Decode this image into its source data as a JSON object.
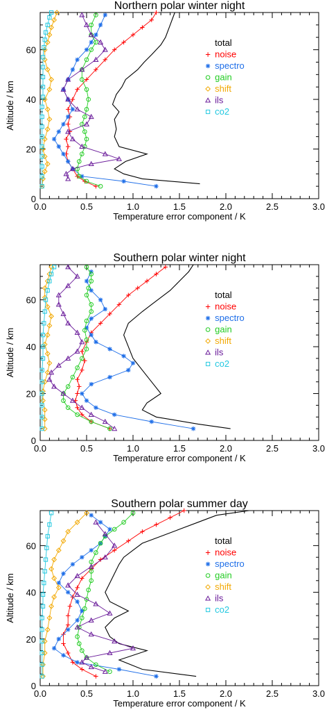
{
  "chart_data": [
    {
      "type": "line",
      "title": "Northern polar winter night",
      "xlabel": "Temperature error component / K",
      "ylabel": "Altitude / km",
      "xlim": [
        0,
        3
      ],
      "ylim": [
        0,
        75
      ],
      "xticks": [
        "0.0",
        "0.5",
        "1.0",
        "1.5",
        "2.0",
        "2.5",
        "3.0"
      ],
      "yticks": [
        "0",
        "20",
        "40",
        "60"
      ],
      "grid": false,
      "legend": "top-right",
      "series": [
        {
          "name": "total",
          "color": "#000000",
          "marker": "none",
          "x": [
            1.72,
            1.1,
            0.9,
            0.8,
            0.92,
            1.15,
            0.85,
            0.8,
            0.82,
            0.8,
            0.85,
            0.78,
            0.82,
            0.88,
            0.92,
            1.05,
            1.12,
            1.2,
            1.3,
            1.35,
            1.4,
            1.45
          ],
          "y": [
            6,
            8,
            10,
            12,
            15,
            18,
            21,
            25,
            28,
            32,
            35,
            38,
            42,
            45,
            48,
            52,
            55,
            58,
            62,
            65,
            70,
            75
          ]
        },
        {
          "name": "noise",
          "color": "#ff0000",
          "marker": "plus",
          "x": [
            0.6,
            0.48,
            0.4,
            0.35,
            0.3,
            0.28,
            0.3,
            0.28,
            0.32,
            0.3,
            0.32,
            0.3,
            0.35,
            0.4,
            0.5,
            0.6,
            0.7,
            0.8,
            0.9,
            1.0,
            1.1,
            1.2,
            1.25
          ],
          "y": [
            5,
            7,
            9,
            12,
            15,
            18,
            21,
            24,
            27,
            30,
            33,
            36,
            40,
            44,
            48,
            52,
            56,
            60,
            63,
            66,
            69,
            72,
            75
          ]
        },
        {
          "name": "spectro",
          "color": "#1e6ee8",
          "marker": "asterisk",
          "x": [
            1.25,
            0.9,
            0.45,
            0.35,
            0.3,
            0.25,
            0.2,
            0.15,
            0.2,
            0.25,
            0.3,
            0.35,
            0.3,
            0.25,
            0.3,
            0.35,
            0.4,
            0.5,
            0.55,
            0.6,
            0.65,
            0.7
          ],
          "y": [
            5,
            7,
            9,
            12,
            15,
            18,
            21,
            24,
            27,
            30,
            33,
            36,
            40,
            44,
            48,
            52,
            56,
            60,
            63,
            66,
            70,
            74
          ]
        },
        {
          "name": "gain",
          "color": "#22cc22",
          "marker": "circle",
          "x": [
            0.65,
            0.5,
            0.42,
            0.4,
            0.42,
            0.45,
            0.48,
            0.5,
            0.48,
            0.45,
            0.48,
            0.5,
            0.52,
            0.5,
            0.45,
            0.45,
            0.5,
            0.55,
            0.6,
            0.55,
            0.55,
            0.6
          ],
          "y": [
            5,
            7,
            9,
            12,
            15,
            18,
            21,
            24,
            27,
            30,
            33,
            36,
            40,
            44,
            48,
            52,
            56,
            60,
            63,
            66,
            70,
            74
          ]
        },
        {
          "name": "shift",
          "color": "#f2a800",
          "marker": "diamond",
          "x": [
            0.02,
            0.03,
            0.05,
            0.08,
            0.05,
            0.03,
            0.05,
            0.08,
            0.1,
            0.08,
            0.05,
            0.1,
            0.12,
            0.08,
            0.05,
            0.05,
            0.08,
            0.1,
            0.12,
            0.15,
            0.18
          ],
          "y": [
            5,
            8,
            11,
            14,
            17,
            20,
            24,
            28,
            32,
            36,
            40,
            44,
            48,
            52,
            56,
            60,
            63,
            66,
            69,
            72,
            75
          ]
        },
        {
          "name": "ils",
          "color": "#6a1b9a",
          "marker": "triangle",
          "x": [
            0.3,
            0.28,
            0.35,
            0.55,
            0.85,
            0.7,
            0.45,
            0.35,
            0.3,
            0.5,
            0.55,
            0.4,
            0.3,
            0.25,
            0.3,
            0.45,
            0.6,
            0.7,
            0.65,
            0.55,
            0.5,
            0.45
          ],
          "y": [
            8,
            10,
            12,
            14,
            16,
            18,
            21,
            24,
            27,
            30,
            33,
            36,
            40,
            44,
            48,
            52,
            56,
            60,
            63,
            66,
            70,
            74
          ]
        },
        {
          "name": "co2",
          "color": "#22c8e0",
          "marker": "square",
          "x": [
            0.02,
            0.02,
            0.02,
            0.02,
            0.02,
            0.02,
            0.02,
            0.02,
            0.02,
            0.03,
            0.03,
            0.03,
            0.03,
            0.03,
            0.04,
            0.05,
            0.06,
            0.08,
            0.1,
            0.12
          ],
          "y": [
            5,
            9,
            13,
            17,
            21,
            25,
            29,
            33,
            37,
            41,
            45,
            49,
            53,
            57,
            61,
            64,
            67,
            70,
            73,
            75
          ]
        }
      ]
    },
    {
      "type": "line",
      "title": "Southern polar winter night",
      "xlabel": "Temperature error component / K",
      "ylabel": "Altitude / km",
      "xlim": [
        0,
        3
      ],
      "ylim": [
        0,
        75
      ],
      "xticks": [
        "0.0",
        "0.5",
        "1.0",
        "1.5",
        "2.0",
        "2.5",
        "3.0"
      ],
      "yticks": [
        "0",
        "20",
        "40",
        "60"
      ],
      "grid": false,
      "legend": "top-right",
      "series": [
        {
          "name": "total",
          "color": "#000000",
          "marker": "none",
          "x": [
            2.05,
            1.7,
            1.25,
            1.1,
            1.15,
            1.3,
            1.2,
            1.1,
            1.0,
            0.95,
            0.9,
            0.95,
            1.1,
            1.2,
            1.3,
            1.4,
            1.45,
            1.5,
            1.55,
            1.6,
            1.65
          ],
          "y": [
            5,
            7,
            10,
            13,
            16,
            20,
            25,
            30,
            35,
            40,
            45,
            50,
            55,
            58,
            61,
            64,
            66,
            68,
            70,
            72,
            75
          ]
        },
        {
          "name": "noise",
          "color": "#ff0000",
          "marker": "plus",
          "x": [
            0.75,
            0.55,
            0.45,
            0.4,
            0.38,
            0.4,
            0.42,
            0.4,
            0.45,
            0.48,
            0.45,
            0.5,
            0.55,
            0.65,
            0.75,
            0.85,
            0.95,
            1.05,
            1.15,
            1.25,
            1.35
          ],
          "y": [
            5,
            8,
            11,
            14,
            17,
            20,
            23,
            26,
            30,
            34,
            38,
            42,
            46,
            50,
            54,
            58,
            62,
            65,
            68,
            71,
            74
          ]
        },
        {
          "name": "spectro",
          "color": "#1e6ee8",
          "marker": "asterisk",
          "x": [
            1.65,
            1.2,
            0.8,
            0.6,
            0.5,
            0.45,
            0.55,
            0.75,
            0.95,
            1.0,
            0.9,
            0.75,
            0.6,
            0.55,
            0.5,
            0.55,
            0.7,
            0.65,
            0.55,
            0.5,
            0.55
          ],
          "y": [
            5,
            8,
            11,
            14,
            17,
            20,
            24,
            27,
            30,
            33,
            36,
            39,
            42,
            45,
            48,
            52,
            56,
            60,
            64,
            68,
            72
          ]
        },
        {
          "name": "gain",
          "color": "#22cc22",
          "marker": "circle",
          "x": [
            0.75,
            0.55,
            0.4,
            0.3,
            0.25,
            0.25,
            0.3,
            0.35,
            0.4,
            0.45,
            0.5,
            0.5,
            0.48,
            0.5,
            0.55,
            0.55,
            0.5,
            0.52,
            0.55,
            0.55,
            0.5
          ],
          "y": [
            5,
            8,
            11,
            14,
            17,
            20,
            23,
            27,
            31,
            35,
            39,
            43,
            47,
            51,
            55,
            58,
            62,
            65,
            68,
            71,
            74
          ]
        },
        {
          "name": "shift",
          "color": "#f2a800",
          "marker": "diamond",
          "x": [
            0.05,
            0.05,
            0.05,
            0.03,
            0.03,
            0.05,
            0.08,
            0.1,
            0.08,
            0.05,
            0.08,
            0.1,
            0.12,
            0.08,
            0.05,
            0.05,
            0.08,
            0.1,
            0.12
          ],
          "y": [
            5,
            9,
            13,
            17,
            21,
            25,
            29,
            33,
            37,
            41,
            45,
            49,
            53,
            57,
            61,
            65,
            68,
            71,
            74
          ]
        },
        {
          "name": "ils",
          "color": "#6a1b9a",
          "marker": "triangle",
          "x": [
            0.8,
            0.7,
            0.55,
            0.45,
            0.35,
            0.25,
            0.15,
            0.1,
            0.12,
            0.2,
            0.3,
            0.4,
            0.45,
            0.4,
            0.3,
            0.25,
            0.2,
            0.2,
            0.3,
            0.4,
            0.3
          ],
          "y": [
            5,
            8,
            11,
            14,
            17,
            20,
            23,
            26,
            29,
            32,
            35,
            38,
            42,
            46,
            50,
            54,
            58,
            62,
            66,
            70,
            74
          ]
        },
        {
          "name": "co2",
          "color": "#22c8e0",
          "marker": "square",
          "x": [
            0.02,
            0.02,
            0.02,
            0.02,
            0.02,
            0.02,
            0.03,
            0.03,
            0.03,
            0.04,
            0.05,
            0.06,
            0.08,
            0.1,
            0.12,
            0.15
          ],
          "y": [
            5,
            10,
            15,
            20,
            25,
            30,
            35,
            40,
            45,
            50,
            55,
            60,
            64,
            68,
            71,
            74
          ]
        }
      ]
    },
    {
      "type": "line",
      "title": "Southern polar summer day",
      "xlabel": "Temperature error component / K",
      "ylabel": "Altitude / km",
      "xlim": [
        0,
        3
      ],
      "ylim": [
        0,
        75
      ],
      "xticks": [
        "0.0",
        "0.5",
        "1.0",
        "1.5",
        "2.0",
        "2.5",
        "3.0"
      ],
      "yticks": [
        "0",
        "20",
        "40",
        "60"
      ],
      "grid": false,
      "legend": "top-right",
      "series": [
        {
          "name": "total",
          "color": "#000000",
          "marker": "none",
          "x": [
            1.68,
            1.1,
            0.85,
            1.15,
            0.85,
            0.75,
            0.7,
            0.8,
            0.95,
            0.75,
            0.7,
            0.75,
            0.8,
            0.85,
            0.9,
            1.0,
            1.1,
            1.3,
            1.5,
            1.7,
            1.9,
            2.25
          ],
          "y": [
            4,
            7,
            11,
            15,
            18,
            21,
            25,
            29,
            32,
            36,
            40,
            44,
            48,
            52,
            55,
            58,
            61,
            64,
            67,
            70,
            73,
            75
          ]
        },
        {
          "name": "noise",
          "color": "#ff0000",
          "marker": "plus",
          "x": [
            0.6,
            0.45,
            0.35,
            0.3,
            0.25,
            0.25,
            0.3,
            0.3,
            0.32,
            0.35,
            0.4,
            0.45,
            0.55,
            0.65,
            0.8,
            0.95,
            1.1,
            1.25,
            1.4,
            1.55
          ],
          "y": [
            4,
            7,
            10,
            14,
            18,
            22,
            26,
            30,
            34,
            38,
            42,
            46,
            50,
            54,
            58,
            62,
            66,
            69,
            72,
            75
          ]
        },
        {
          "name": "spectro",
          "color": "#1e6ee8",
          "marker": "asterisk",
          "x": [
            1.25,
            0.85,
            0.4,
            0.25,
            0.15,
            0.2,
            0.3,
            0.4,
            0.45,
            0.4,
            0.3,
            0.2,
            0.25,
            0.35,
            0.45,
            0.55,
            0.65,
            0.7,
            0.75,
            0.65,
            0.55
          ],
          "y": [
            4,
            7,
            10,
            13,
            16,
            20,
            24,
            28,
            32,
            36,
            40,
            44,
            48,
            52,
            55,
            58,
            61,
            64,
            67,
            70,
            73
          ]
        },
        {
          "name": "gain",
          "color": "#22cc22",
          "marker": "circle",
          "x": [
            0.75,
            0.6,
            0.5,
            0.45,
            0.42,
            0.4,
            0.42,
            0.45,
            0.48,
            0.5,
            0.52,
            0.55,
            0.55,
            0.55,
            0.6,
            0.65,
            0.7,
            0.8,
            0.9,
            1.0
          ],
          "y": [
            6,
            9,
            12,
            15,
            18,
            21,
            25,
            29,
            33,
            37,
            41,
            45,
            49,
            53,
            57,
            61,
            64,
            67,
            70,
            74
          ]
        },
        {
          "name": "shift",
          "color": "#f2a800",
          "marker": "diamond",
          "x": [
            0.03,
            0.03,
            0.05,
            0.05,
            0.08,
            0.1,
            0.12,
            0.15,
            0.2,
            0.15,
            0.12,
            0.15,
            0.2,
            0.25,
            0.3,
            0.4,
            0.5
          ],
          "y": [
            4,
            9,
            14,
            19,
            24,
            29,
            34,
            38,
            42,
            46,
            50,
            54,
            58,
            62,
            66,
            70,
            74
          ]
        },
        {
          "name": "ils",
          "color": "#6a1b9a",
          "marker": "triangle",
          "x": [
            0.7,
            0.55,
            0.45,
            0.5,
            0.75,
            1.0,
            0.8,
            0.55,
            0.4,
            0.55,
            0.75,
            0.6,
            0.4,
            0.3,
            0.4,
            0.55,
            0.7,
            0.8,
            0.7,
            0.6
          ],
          "y": [
            6,
            8,
            10,
            12,
            14,
            16,
            19,
            22,
            25,
            28,
            31,
            35,
            39,
            43,
            47,
            51,
            55,
            60,
            65,
            70
          ]
        },
        {
          "name": "co2",
          "color": "#22c8e0",
          "marker": "square",
          "x": [
            0.02,
            0.02,
            0.02,
            0.02,
            0.02,
            0.02,
            0.03,
            0.03,
            0.04,
            0.05,
            0.06,
            0.07,
            0.08,
            0.1,
            0.12
          ],
          "y": [
            4,
            9,
            14,
            19,
            24,
            29,
            34,
            39,
            44,
            49,
            54,
            59,
            64,
            69,
            74
          ]
        }
      ]
    }
  ]
}
